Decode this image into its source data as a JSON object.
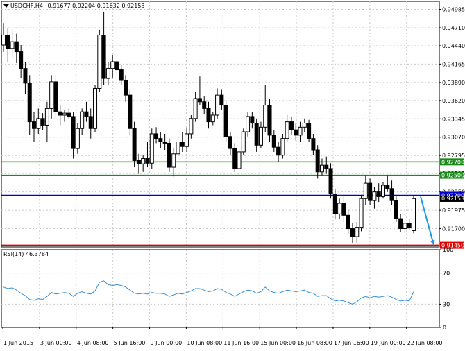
{
  "header": {
    "symbol_label": "USDCHF,H4",
    "ohlc": [
      "0.91677",
      "0.92204",
      "0.91632",
      "0.92153"
    ],
    "triangle_icon": "down-triangle-icon"
  },
  "rsi_header": {
    "label": "RSI(14) 46.3784"
  },
  "colors": {
    "background": "#ffffff",
    "grid": "#c8c8c8",
    "candle": "#000000",
    "support_green": "#1a8a1a",
    "resistance_blue": "#0000cc",
    "target_red": "#e00000",
    "arrow": "#1e9be0",
    "rsi_line": "#3c8fd0",
    "price_tag_bg": "#1a8a1a",
    "current_price_tag_bg": "#000000"
  },
  "chart_data": [
    {
      "type": "candlestick",
      "title": "USDCHF,H4",
      "ylim": [
        0.91425,
        0.9498
      ],
      "y_ticks": [
        "0.94985",
        "0.94710",
        "0.94440",
        "0.94165",
        "0.93890",
        "0.93620",
        "0.93345",
        "0.93070",
        "0.92795",
        "0.92525",
        "0.92250",
        "0.91975",
        "0.91700"
      ],
      "x_ticks": [
        "1 Jun 2015",
        "3 Jun 00:00",
        "4 Jun 08:00",
        "5 Jun 16:00",
        "9 Jun 00:00",
        "10 Jun 08:00",
        "11 Jun 16:00",
        "15 Jun 00:00",
        "16 Jun 08:00",
        "17 Jun 16:00",
        "19 Jun 00:00",
        "22 Jun 08:00"
      ],
      "horizontal_lines": [
        {
          "value": 0.927,
          "label": "0.92700",
          "color": "green"
        },
        {
          "value": 0.925,
          "label": "0.92500",
          "color": "green"
        },
        {
          "value": 0.922,
          "label": "0.92200",
          "color": "blue"
        },
        {
          "value": 0.9145,
          "label": "0.91450",
          "color": "red"
        }
      ],
      "current_price": "0.92153",
      "annotation": "down-arrow from 0.92153 to 0.91450",
      "candles": [
        {
          "o": 0.9445,
          "h": 0.9478,
          "l": 0.9435,
          "c": 0.946
        },
        {
          "o": 0.946,
          "h": 0.947,
          "l": 0.942,
          "c": 0.944
        },
        {
          "o": 0.944,
          "h": 0.9468,
          "l": 0.9425,
          "c": 0.945
        },
        {
          "o": 0.945,
          "h": 0.9462,
          "l": 0.9418,
          "c": 0.9435
        },
        {
          "o": 0.9435,
          "h": 0.9445,
          "l": 0.9395,
          "c": 0.941
        },
        {
          "o": 0.941,
          "h": 0.942,
          "l": 0.9372,
          "c": 0.9388
        },
        {
          "o": 0.9388,
          "h": 0.94,
          "l": 0.931,
          "c": 0.933
        },
        {
          "o": 0.933,
          "h": 0.9345,
          "l": 0.93,
          "c": 0.932
        },
        {
          "o": 0.932,
          "h": 0.935,
          "l": 0.9312,
          "c": 0.9335
        },
        {
          "o": 0.9335,
          "h": 0.9343,
          "l": 0.9318,
          "c": 0.9325
        },
        {
          "o": 0.9325,
          "h": 0.936,
          "l": 0.93,
          "c": 0.935
        },
        {
          "o": 0.935,
          "h": 0.94,
          "l": 0.9335,
          "c": 0.939
        },
        {
          "o": 0.939,
          "h": 0.9398,
          "l": 0.9335,
          "c": 0.9345
        },
        {
          "o": 0.9345,
          "h": 0.9355,
          "l": 0.9325,
          "c": 0.934
        },
        {
          "o": 0.934,
          "h": 0.9348,
          "l": 0.933,
          "c": 0.9343
        },
        {
          "o": 0.9343,
          "h": 0.935,
          "l": 0.9335,
          "c": 0.9338
        },
        {
          "o": 0.9338,
          "h": 0.9345,
          "l": 0.9275,
          "c": 0.929
        },
        {
          "o": 0.929,
          "h": 0.9328,
          "l": 0.9282,
          "c": 0.932
        },
        {
          "o": 0.932,
          "h": 0.935,
          "l": 0.931,
          "c": 0.9345
        },
        {
          "o": 0.9345,
          "h": 0.936,
          "l": 0.933,
          "c": 0.9338
        },
        {
          "o": 0.9338,
          "h": 0.935,
          "l": 0.9305,
          "c": 0.932
        },
        {
          "o": 0.932,
          "h": 0.9385,
          "l": 0.9315,
          "c": 0.938
        },
        {
          "o": 0.938,
          "h": 0.9468,
          "l": 0.9375,
          "c": 0.946
        },
        {
          "o": 0.946,
          "h": 0.9495,
          "l": 0.9385,
          "c": 0.9395
        },
        {
          "o": 0.9395,
          "h": 0.942,
          "l": 0.9385,
          "c": 0.941
        },
        {
          "o": 0.941,
          "h": 0.943,
          "l": 0.9395,
          "c": 0.942
        },
        {
          "o": 0.942,
          "h": 0.9428,
          "l": 0.94,
          "c": 0.9408
        },
        {
          "o": 0.9408,
          "h": 0.9415,
          "l": 0.9385,
          "c": 0.9392
        },
        {
          "o": 0.9392,
          "h": 0.94,
          "l": 0.936,
          "c": 0.937
        },
        {
          "o": 0.937,
          "h": 0.9378,
          "l": 0.931,
          "c": 0.932
        },
        {
          "o": 0.932,
          "h": 0.933,
          "l": 0.9262,
          "c": 0.9272
        },
        {
          "o": 0.9272,
          "h": 0.9282,
          "l": 0.9252,
          "c": 0.9267
        },
        {
          "o": 0.9267,
          "h": 0.928,
          "l": 0.9255,
          "c": 0.9275
        },
        {
          "o": 0.9275,
          "h": 0.93,
          "l": 0.9262,
          "c": 0.9268
        },
        {
          "o": 0.9268,
          "h": 0.932,
          "l": 0.926,
          "c": 0.9312
        },
        {
          "o": 0.9312,
          "h": 0.9322,
          "l": 0.9298,
          "c": 0.9305
        },
        {
          "o": 0.9305,
          "h": 0.9315,
          "l": 0.929,
          "c": 0.93
        },
        {
          "o": 0.93,
          "h": 0.9312,
          "l": 0.9288,
          "c": 0.9298
        },
        {
          "o": 0.9298,
          "h": 0.9305,
          "l": 0.9255,
          "c": 0.9262
        },
        {
          "o": 0.9262,
          "h": 0.929,
          "l": 0.9248,
          "c": 0.9282
        },
        {
          "o": 0.9282,
          "h": 0.931,
          "l": 0.9278,
          "c": 0.93
        },
        {
          "o": 0.93,
          "h": 0.9315,
          "l": 0.9285,
          "c": 0.9293
        },
        {
          "o": 0.9293,
          "h": 0.932,
          "l": 0.9285,
          "c": 0.9312
        },
        {
          "o": 0.9312,
          "h": 0.934,
          "l": 0.9305,
          "c": 0.9335
        },
        {
          "o": 0.9335,
          "h": 0.9375,
          "l": 0.933,
          "c": 0.9365
        },
        {
          "o": 0.9365,
          "h": 0.9398,
          "l": 0.9355,
          "c": 0.936
        },
        {
          "o": 0.936,
          "h": 0.9368,
          "l": 0.9342,
          "c": 0.935
        },
        {
          "o": 0.935,
          "h": 0.936,
          "l": 0.932,
          "c": 0.933
        },
        {
          "o": 0.933,
          "h": 0.9345,
          "l": 0.9325,
          "c": 0.934
        },
        {
          "o": 0.934,
          "h": 0.938,
          "l": 0.9335,
          "c": 0.937
        },
        {
          "o": 0.937,
          "h": 0.9378,
          "l": 0.9348,
          "c": 0.9355
        },
        {
          "o": 0.9355,
          "h": 0.9362,
          "l": 0.93,
          "c": 0.9308
        },
        {
          "o": 0.9308,
          "h": 0.9315,
          "l": 0.928,
          "c": 0.929
        },
        {
          "o": 0.929,
          "h": 0.9298,
          "l": 0.9255,
          "c": 0.926
        },
        {
          "o": 0.926,
          "h": 0.929,
          "l": 0.9255,
          "c": 0.9285
        },
        {
          "o": 0.9285,
          "h": 0.932,
          "l": 0.928,
          "c": 0.9315
        },
        {
          "o": 0.9315,
          "h": 0.9345,
          "l": 0.9308,
          "c": 0.9338
        },
        {
          "o": 0.9338,
          "h": 0.9345,
          "l": 0.932,
          "c": 0.9328
        },
        {
          "o": 0.9328,
          "h": 0.9335,
          "l": 0.9285,
          "c": 0.9295
        },
        {
          "o": 0.9295,
          "h": 0.933,
          "l": 0.929,
          "c": 0.9322
        },
        {
          "o": 0.9322,
          "h": 0.9385,
          "l": 0.9315,
          "c": 0.9355
        },
        {
          "o": 0.9355,
          "h": 0.9365,
          "l": 0.93,
          "c": 0.931
        },
        {
          "o": 0.931,
          "h": 0.9318,
          "l": 0.9285,
          "c": 0.9292
        },
        {
          "o": 0.9292,
          "h": 0.93,
          "l": 0.927,
          "c": 0.928
        },
        {
          "o": 0.928,
          "h": 0.9312,
          "l": 0.9275,
          "c": 0.9305
        },
        {
          "o": 0.9305,
          "h": 0.934,
          "l": 0.93,
          "c": 0.933
        },
        {
          "o": 0.933,
          "h": 0.9338,
          "l": 0.931,
          "c": 0.9318
        },
        {
          "o": 0.9318,
          "h": 0.9328,
          "l": 0.9302,
          "c": 0.931
        },
        {
          "o": 0.931,
          "h": 0.933,
          "l": 0.93,
          "c": 0.9322
        },
        {
          "o": 0.9322,
          "h": 0.9335,
          "l": 0.9315,
          "c": 0.9328
        },
        {
          "o": 0.9328,
          "h": 0.9333,
          "l": 0.93,
          "c": 0.9305
        },
        {
          "o": 0.9305,
          "h": 0.9312,
          "l": 0.928,
          "c": 0.9288
        },
        {
          "o": 0.9288,
          "h": 0.9295,
          "l": 0.9245,
          "c": 0.9255
        },
        {
          "o": 0.9255,
          "h": 0.9275,
          "l": 0.925,
          "c": 0.9265
        },
        {
          "o": 0.9265,
          "h": 0.9278,
          "l": 0.9252,
          "c": 0.926
        },
        {
          "o": 0.926,
          "h": 0.9268,
          "l": 0.9215,
          "c": 0.9222
        },
        {
          "o": 0.9222,
          "h": 0.923,
          "l": 0.9185,
          "c": 0.9192
        },
        {
          "o": 0.9192,
          "h": 0.9215,
          "l": 0.9185,
          "c": 0.9208
        },
        {
          "o": 0.9208,
          "h": 0.9218,
          "l": 0.918,
          "c": 0.919
        },
        {
          "o": 0.919,
          "h": 0.9198,
          "l": 0.9162,
          "c": 0.917
        },
        {
          "o": 0.917,
          "h": 0.9178,
          "l": 0.9148,
          "c": 0.9158
        },
        {
          "o": 0.9158,
          "h": 0.918,
          "l": 0.9148,
          "c": 0.9172
        },
        {
          "o": 0.9172,
          "h": 0.922,
          "l": 0.9166,
          "c": 0.9215
        },
        {
          "o": 0.9215,
          "h": 0.925,
          "l": 0.9205,
          "c": 0.9238
        },
        {
          "o": 0.9238,
          "h": 0.9245,
          "l": 0.9205,
          "c": 0.9212
        },
        {
          "o": 0.9212,
          "h": 0.9232,
          "l": 0.92,
          "c": 0.9225
        },
        {
          "o": 0.9225,
          "h": 0.9238,
          "l": 0.921,
          "c": 0.9218
        },
        {
          "o": 0.9218,
          "h": 0.924,
          "l": 0.9215,
          "c": 0.9235
        },
        {
          "o": 0.9235,
          "h": 0.925,
          "l": 0.9225,
          "c": 0.923
        },
        {
          "o": 0.923,
          "h": 0.9242,
          "l": 0.9205,
          "c": 0.9212
        },
        {
          "o": 0.9212,
          "h": 0.9218,
          "l": 0.918,
          "c": 0.9185
        },
        {
          "o": 0.9185,
          "h": 0.9192,
          "l": 0.9165,
          "c": 0.917
        },
        {
          "o": 0.917,
          "h": 0.9182,
          "l": 0.9165,
          "c": 0.9178
        },
        {
          "o": 0.9178,
          "h": 0.9185,
          "l": 0.9168,
          "c": 0.9172
        },
        {
          "o": 0.9167,
          "h": 0.922,
          "l": 0.9163,
          "c": 0.9215
        }
      ]
    },
    {
      "type": "line",
      "title": "RSI(14) 46.3784",
      "ylim": [
        0,
        100
      ],
      "y_ticks": [
        "100",
        "70",
        "30",
        "0"
      ],
      "values": [
        52,
        50,
        51,
        48,
        44,
        41,
        36,
        35,
        37,
        36,
        40,
        45,
        43,
        44,
        45,
        44,
        40,
        44,
        46,
        44,
        43,
        47,
        58,
        60,
        55,
        54,
        55,
        54,
        52,
        48,
        44,
        43,
        44,
        43,
        45,
        44,
        44,
        43,
        40,
        42,
        44,
        43,
        45,
        47,
        50,
        50,
        48,
        46,
        47,
        50,
        49,
        45,
        43,
        40,
        43,
        46,
        48,
        47,
        44,
        46,
        52,
        47,
        45,
        44,
        46,
        48,
        47,
        46,
        47,
        48,
        45,
        44,
        40,
        41,
        41,
        37,
        34,
        35,
        34,
        32,
        30,
        33,
        38,
        40,
        38,
        40,
        39,
        40,
        41,
        39,
        36,
        34,
        35,
        34,
        46
      ]
    }
  ]
}
